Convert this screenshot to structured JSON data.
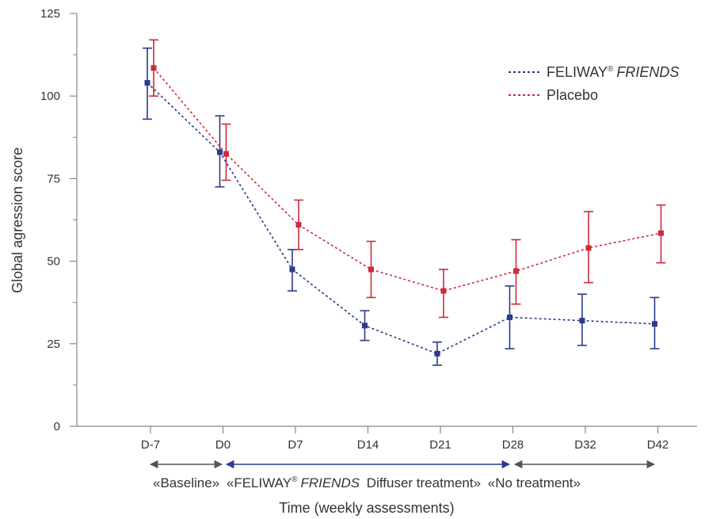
{
  "chart_data": {
    "type": "line",
    "title": "",
    "xlabel": "Time (weekly assessments)",
    "ylabel": "Global agression score",
    "ylim": [
      0,
      125
    ],
    "yticks": [
      0,
      25,
      50,
      75,
      100,
      125
    ],
    "categories": [
      "D-7",
      "D0",
      "D7",
      "D14",
      "D21",
      "D28",
      "D32",
      "D42"
    ],
    "legend_position": "top-right",
    "grid": false,
    "series": [
      {
        "name_main": "FELIWAY",
        "name_reg": "®",
        "name_italic": "FRIENDS",
        "color": "#2b3a8c",
        "line_style": "dotted",
        "values": [
          104,
          83,
          47.5,
          30.5,
          22,
          33,
          32,
          31
        ],
        "err_low": [
          93,
          72.5,
          41,
          26,
          18.5,
          23.5,
          24.5,
          23.5
        ],
        "err_high": [
          114.5,
          94,
          53.5,
          35,
          25.5,
          42.5,
          40,
          39
        ]
      },
      {
        "name": "Placebo",
        "color": "#cc2b3b",
        "line_style": "dotted",
        "values": [
          108.5,
          82.5,
          61,
          47.5,
          41,
          47,
          54,
          58.5
        ],
        "err_low": [
          100,
          74.5,
          53.5,
          39,
          33,
          37,
          43.5,
          49.5
        ],
        "err_high": [
          117,
          91.5,
          68.5,
          56,
          47.5,
          56.5,
          65,
          67
        ]
      }
    ],
    "phases": [
      {
        "label": "«Baseline»",
        "from": "D-7",
        "to": "D0",
        "color": "#555555"
      },
      {
        "label_pre": "«FELIWAY",
        "label_reg": "®",
        "label_italic": "FRIENDS",
        "label_post": "Diffuser treatment»",
        "from": "D0",
        "to": "D28",
        "color": "#2b3a8c"
      },
      {
        "label": "«No treatment»",
        "from": "D28",
        "to": "D42",
        "color": "#555555"
      }
    ]
  }
}
